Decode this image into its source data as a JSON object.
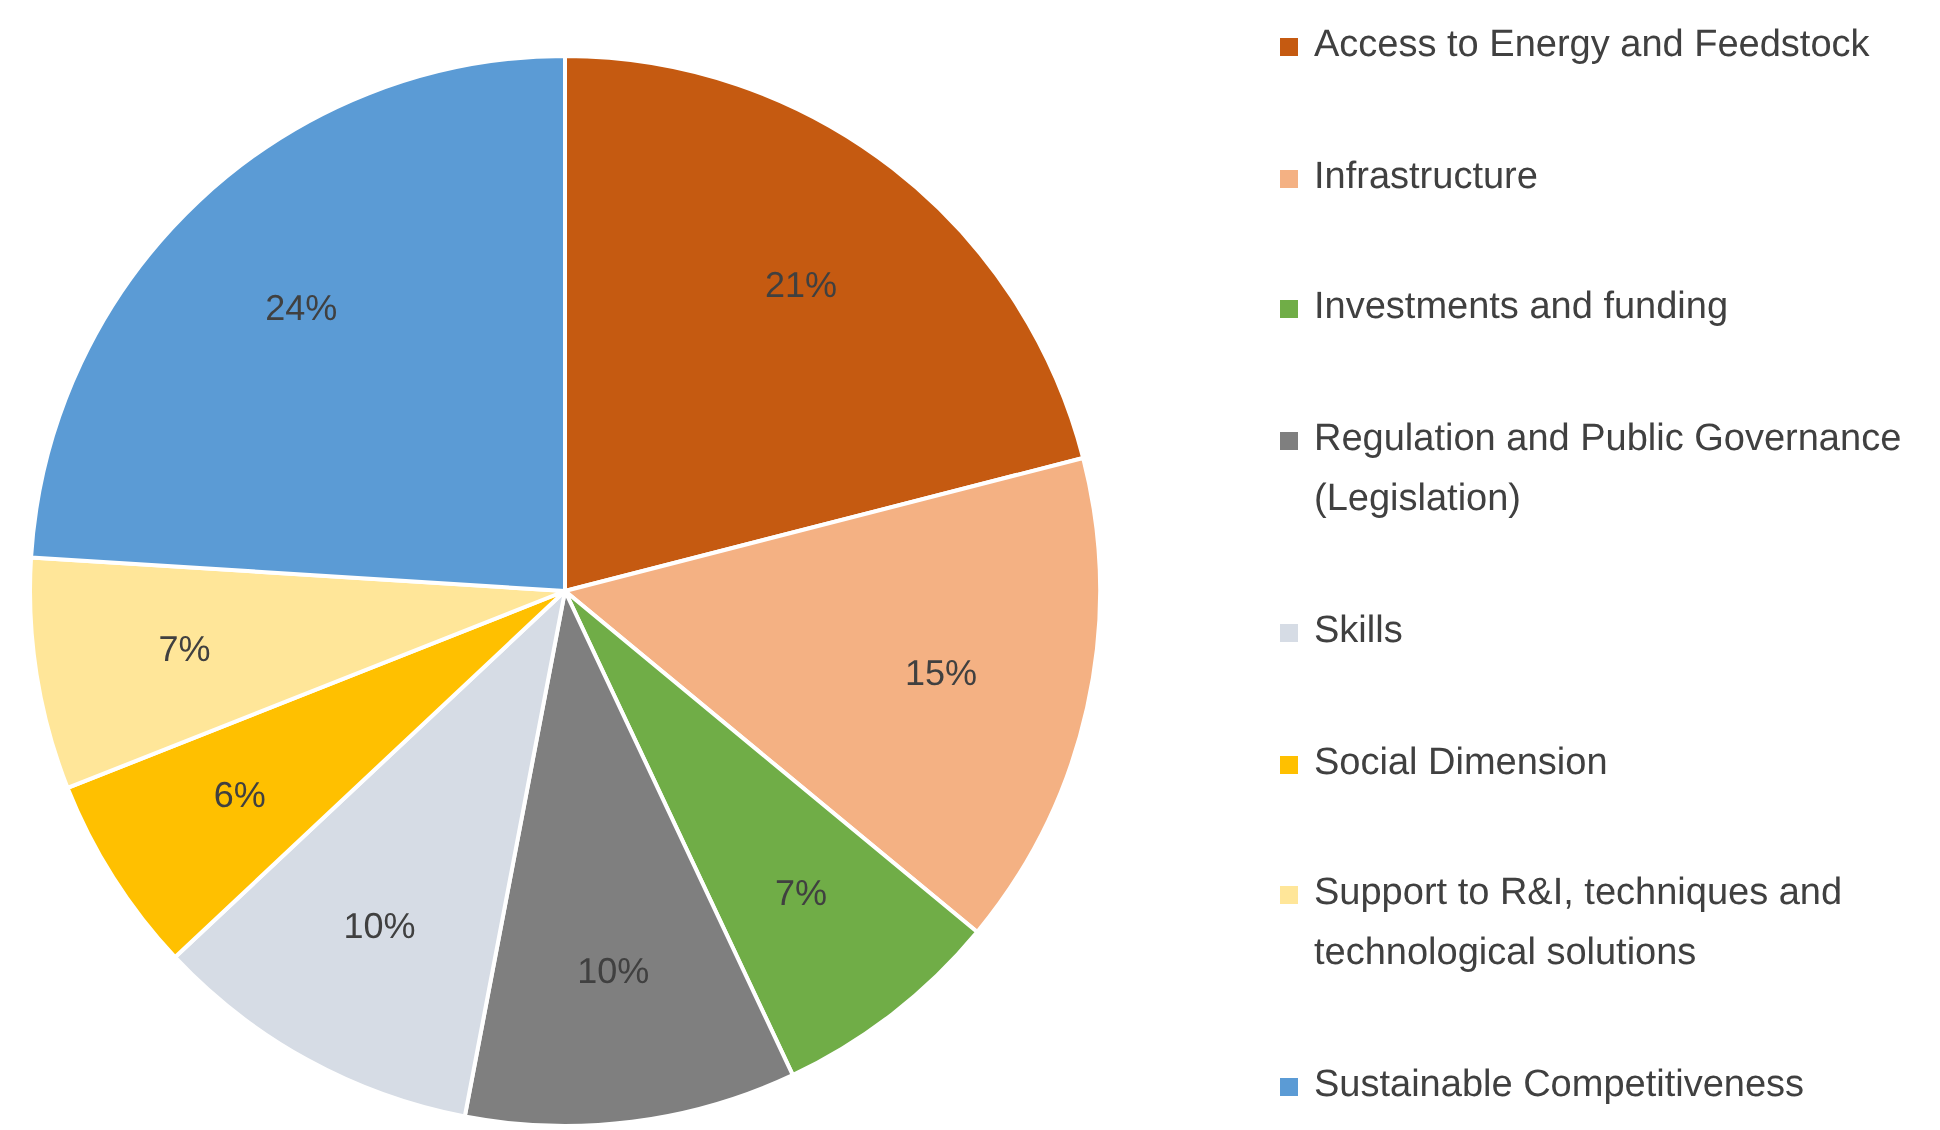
{
  "chart_data": {
    "type": "pie",
    "categories": [
      "Access to Energy and Feedstock",
      "Infrastructure",
      "Investments and funding",
      "Regulation and Public Governance (Legislation)",
      "Skills",
      "Social Dimension",
      "Support to R&I, techniques and technological solutions",
      "Sustainable Competitiveness"
    ],
    "values": [
      21,
      15,
      7,
      10,
      10,
      6,
      7,
      24
    ],
    "value_labels": [
      "21%",
      "15%",
      "7%",
      "10%",
      "10%",
      "6%",
      "7%",
      "24%"
    ],
    "colors": [
      "#c55a11",
      "#f4b183",
      "#70ad47",
      "#7f7f7f",
      "#d6dce5",
      "#ffc000",
      "#ffe699",
      "#5b9bd5"
    ],
    "legend": "right"
  }
}
